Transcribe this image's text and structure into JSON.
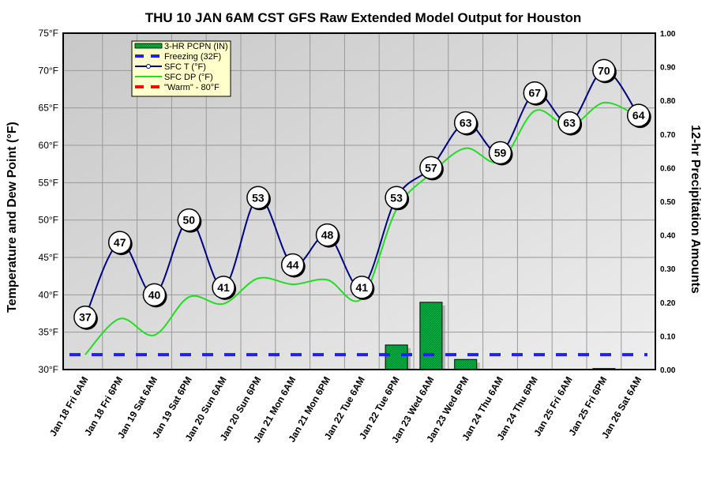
{
  "chart_data": {
    "type": "line",
    "title": "THU 10 JAN 6AM CST GFS Raw Extended Model Output for Houston",
    "ylabel": "Temperature and Dew Point (°F)",
    "y2label": "12-hr Precipitation Amounts",
    "ylim": [
      30,
      75
    ],
    "y2lim": [
      0,
      1.0
    ],
    "yticks": [
      "30°F",
      "35°F",
      "40°F",
      "45°F",
      "50°F",
      "55°F",
      "60°F",
      "65°F",
      "70°F",
      "75°F"
    ],
    "y2ticks": [
      "0.00",
      "0.10",
      "0.20",
      "0.30",
      "0.40",
      "0.50",
      "0.60",
      "0.70",
      "0.80",
      "0.90",
      "1.00"
    ],
    "categories": [
      "Jan 18 Fri 6AM",
      "Jan 18 Fri 6PM",
      "Jan 19 Sat 6AM",
      "Jan 19 Sat 6PM",
      "Jan 20 Sun 6AM",
      "Jan 20 Sun 6PM",
      "Jan 21 Mon 6AM",
      "Jan 21 Mon 6PM",
      "Jan 22 Tue 6AM",
      "Jan 22 Tue 6PM",
      "Jan 23 Wed 6AM",
      "Jan 23 Wed 6PM",
      "Jan 24 Thu 6AM",
      "Jan 24 Thu 6PM",
      "Jan 25 Fri 6AM",
      "Jan 25 Fri 6PM",
      "Jan 26 Sat 6AM"
    ],
    "series": [
      {
        "name": "SFC T (°F)",
        "color": "#000080",
        "values": [
          37,
          47,
          40,
          50,
          41,
          53,
          44,
          48,
          41,
          53,
          57,
          63,
          59,
          67,
          63,
          70,
          64
        ]
      },
      {
        "name": "SFC DP (°F)",
        "color": "#22dd22",
        "values": [
          32,
          36.8,
          34.6,
          39.7,
          38.8,
          42.2,
          41.4,
          42,
          39.5,
          51.4,
          56.2,
          59.6,
          57.8,
          64.6,
          62.5,
          65.7,
          63.8
        ]
      },
      {
        "name": "3-HR PCPN (IN)",
        "color": "#00a040",
        "axis": "right",
        "values": [
          0,
          0,
          0,
          0,
          0,
          0,
          0,
          0,
          0,
          0.073,
          0.2,
          0.03,
          0,
          0,
          0,
          0.003,
          0
        ]
      },
      {
        "name": "Freezing (32F)",
        "color": "#2020ff",
        "constant": 32
      },
      {
        "name": "\"Warm\" - 80°F",
        "color": "#ff0000",
        "constant": 80
      }
    ],
    "legend": "top-left",
    "grid": true
  }
}
